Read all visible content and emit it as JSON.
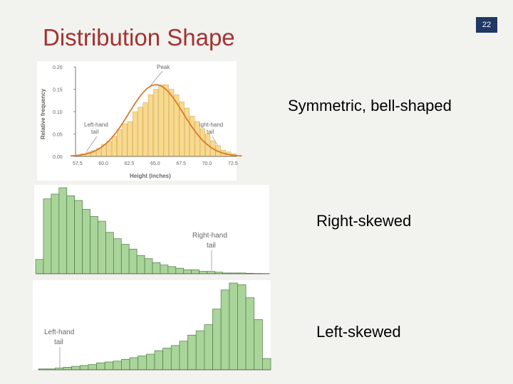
{
  "slide": {
    "title": "Distribution Shape",
    "page_number": "22"
  },
  "captions": {
    "symmetric": "Symmetric, bell-shaped",
    "right_skewed": "Right-skewed",
    "left_skewed": "Left-skewed"
  },
  "colors": {
    "title": "#a33232",
    "badge": "#1f3864",
    "bell_fill": "#f9d98c",
    "bell_curve": "#d97a2c",
    "skew_fill": "#a9d49a"
  },
  "chart_data": [
    {
      "type": "bar",
      "ylabel": "Relative frequency",
      "xlabel": "Height (inches)",
      "ylim": [
        0,
        0.2
      ],
      "y_ticks": [
        "0.20",
        "0.15",
        "0.10",
        "0.05",
        "0.00"
      ],
      "x_ticks": [
        "57.5",
        "60.0",
        "62.5",
        "65.0",
        "67.5",
        "70.0",
        "72.5"
      ],
      "annotations": {
        "peak": "Peak",
        "left_tail": "Left-hand tail",
        "right_tail": "Right-hand tail"
      },
      "values": [
        0.003,
        0.006,
        0.01,
        0.013,
        0.018,
        0.027,
        0.034,
        0.045,
        0.06,
        0.073,
        0.078,
        0.1,
        0.11,
        0.12,
        0.138,
        0.15,
        0.16,
        0.16,
        0.15,
        0.138,
        0.122,
        0.108,
        0.09,
        0.078,
        0.062,
        0.05,
        0.035,
        0.024,
        0.014,
        0.01,
        0.006
      ],
      "curve": true
    },
    {
      "type": "bar",
      "annotations": {
        "right_tail": "Right-hand tail"
      },
      "values": [
        18,
        94,
        100,
        108,
        98,
        92,
        81,
        72,
        66,
        52,
        44,
        37,
        31,
        23,
        19,
        14,
        11,
        9,
        7,
        5,
        5,
        3,
        3,
        2,
        1,
        1,
        1,
        0.6,
        0.4,
        0.3
      ]
    },
    {
      "type": "bar",
      "annotations": {
        "left_tail": "Left-hand tail"
      },
      "values": [
        1,
        1,
        2,
        3,
        4,
        5,
        6,
        8,
        9,
        10,
        12,
        14,
        16,
        18,
        22,
        25,
        28,
        33,
        40,
        45,
        52,
        70,
        92,
        100,
        98,
        83,
        58,
        13
      ]
    }
  ]
}
